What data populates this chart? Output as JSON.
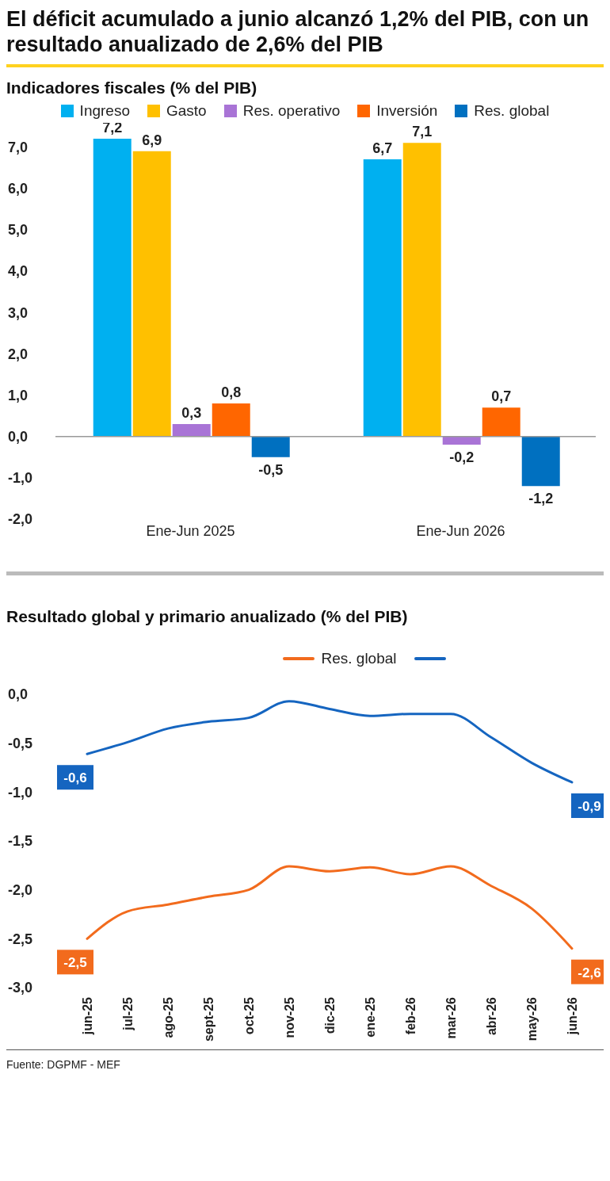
{
  "chart_data": [
    {
      "type": "bar",
      "title": "El déficit acumulado a junio alcanzó 1,2% del PIB, con un resultado anualizado de 2,6% del PIB",
      "subtitle": "Indicadores fiscales (% del PIB)",
      "categories": [
        "Ene-Jun 2025",
        "Ene-Jun  2026"
      ],
      "series": [
        {
          "name": "Ingreso",
          "color": "#00b0f0",
          "values": [
            7.2,
            6.7
          ],
          "value_labels": [
            "7,2",
            "6,7"
          ]
        },
        {
          "name": "Gasto",
          "color": "#ffc000",
          "values": [
            6.9,
            7.1
          ],
          "value_labels": [
            "6,9",
            "7,1"
          ]
        },
        {
          "name": "Res. operativo",
          "color": "#a974d6",
          "values": [
            0.3,
            -0.2
          ],
          "value_labels": [
            "0,3",
            "-0,2"
          ]
        },
        {
          "name": "Inversión",
          "color": "#ff6600",
          "values": [
            0.8,
            0.7
          ],
          "value_labels": [
            "0,8",
            "0,7"
          ]
        },
        {
          "name": "Res. global",
          "color": "#0070c0",
          "values": [
            -0.5,
            -1.2
          ],
          "value_labels": [
            "-0,5",
            "-1,2"
          ]
        }
      ],
      "yticks": [
        {
          "value": -2,
          "label": "-2,0"
        },
        {
          "value": -1,
          "label": "-1,0"
        },
        {
          "value": 0,
          "label": "0,0"
        },
        {
          "value": 1,
          "label": "1,0"
        },
        {
          "value": 2,
          "label": "2,0"
        },
        {
          "value": 3,
          "label": "3,0"
        },
        {
          "value": 4,
          "label": "4,0"
        },
        {
          "value": 5,
          "label": "5,0"
        },
        {
          "value": 6,
          "label": "6,0"
        },
        {
          "value": 7,
          "label": "7,0"
        }
      ],
      "ylim": [
        -2,
        7.2
      ],
      "ref_lines": [
        {
          "axis": "y",
          "value": 0,
          "color": "#999999"
        }
      ],
      "grid": false,
      "legend": "top"
    },
    {
      "type": "line",
      "title": "Resultado global y primario anualizado (% del PIB)",
      "categories": [
        "jun-25",
        "jul-25",
        "ago-25",
        "sept-25",
        "oct-25",
        "nov-25",
        "dic-25",
        "ene-25",
        "feb-26",
        "mar-26",
        "abr-26",
        "may-26",
        "jun-26"
      ],
      "series": [
        {
          "name": "Res. global",
          "color": "#f26b1d",
          "values": [
            -2.5,
            -2.22,
            -2.15,
            -2.07,
            -2.0,
            -1.76,
            -1.81,
            -1.77,
            -1.84,
            -1.76,
            -1.96,
            -2.19,
            -2.6
          ],
          "value_labels": [
            "-2,5",
            null,
            null,
            null,
            null,
            null,
            null,
            null,
            null,
            null,
            null,
            null,
            "-2,6"
          ]
        },
        {
          "color": "#1565c0",
          "values": [
            -0.61,
            -0.49,
            -0.35,
            -0.28,
            -0.24,
            -0.07,
            -0.15,
            -0.22,
            -0.2,
            -0.2,
            -0.44,
            -0.7,
            -0.9
          ],
          "value_labels": [
            "-0,6",
            null,
            null,
            null,
            null,
            null,
            null,
            null,
            null,
            null,
            null,
            null,
            "-0,9"
          ]
        }
      ],
      "ylim": [
        -3,
        0
      ],
      "yticks": [
        {
          "value": -3,
          "label": "-3,0"
        },
        {
          "value": -2.5,
          "label": "-2,5"
        },
        {
          "value": -2,
          "label": "-2,0"
        },
        {
          "value": -1.5,
          "label": "-1,5"
        },
        {
          "value": -1,
          "label": "-1,0"
        },
        {
          "value": -0.5,
          "label": "-0,5"
        },
        {
          "value": 0,
          "label": "0,0"
        }
      ],
      "grid": false,
      "legend": "top",
      "marker": "none",
      "line_style": "solid",
      "annotations": [
        "Fuente: DGPMF - MEF"
      ]
    }
  ]
}
